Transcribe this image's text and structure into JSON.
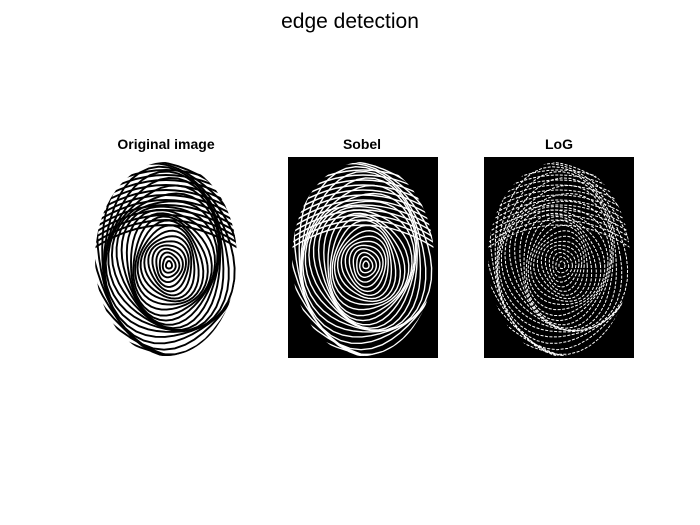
{
  "figure": {
    "title": "edge detection",
    "panels": [
      {
        "title": "Original image"
      },
      {
        "title": "Sobel"
      },
      {
        "title": "LoG"
      }
    ]
  },
  "colors": {
    "background": "#ffffff",
    "ink": "#000000"
  }
}
